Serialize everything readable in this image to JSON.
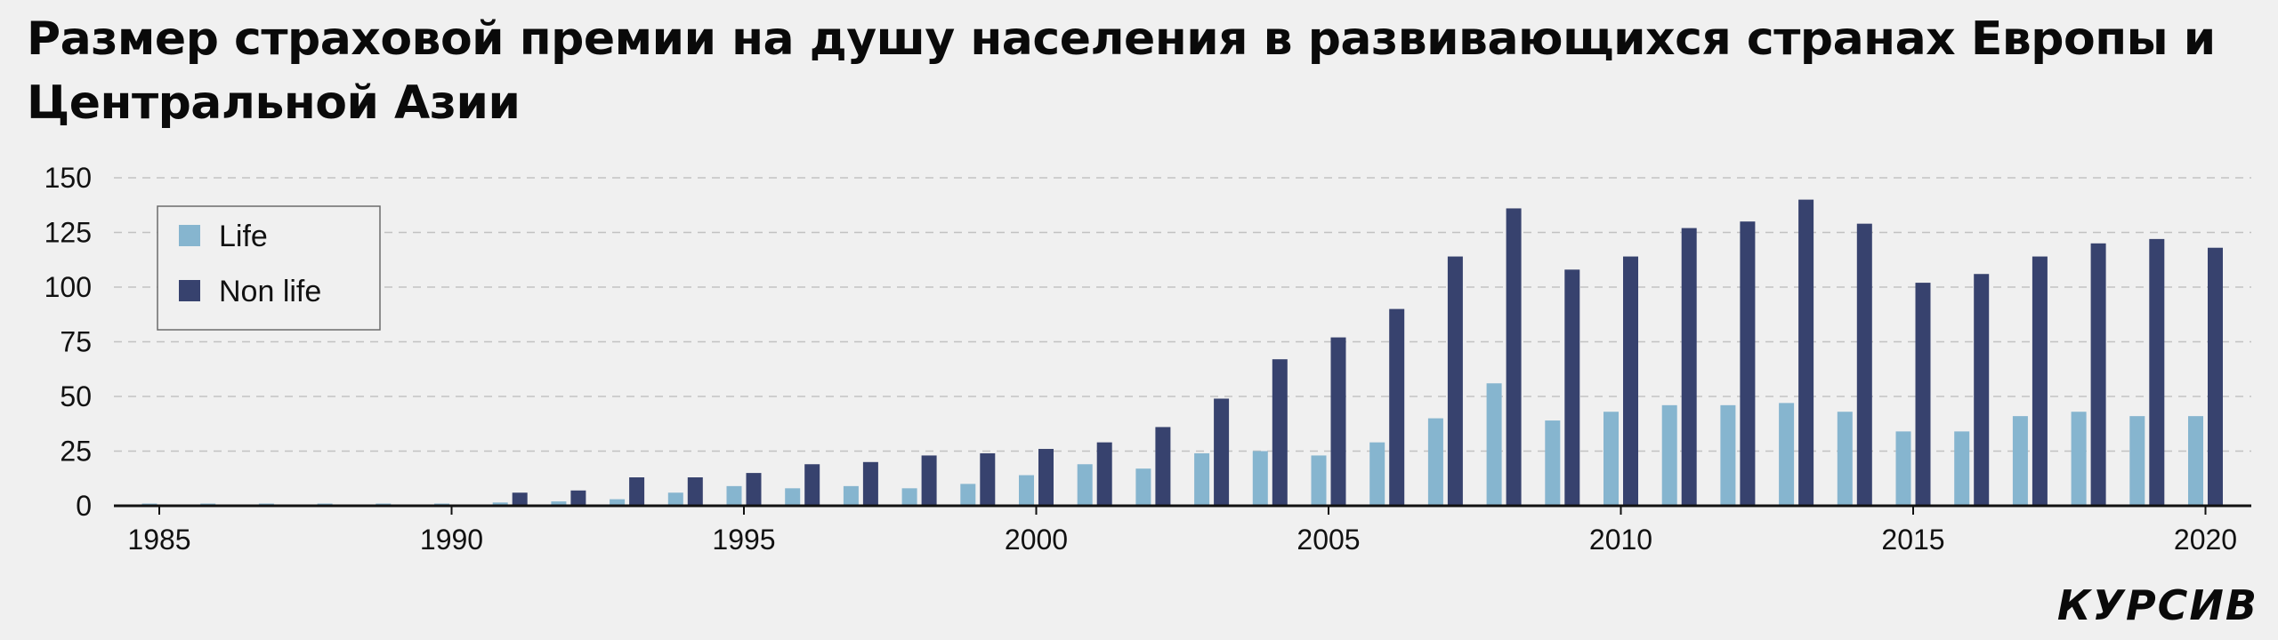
{
  "chart_data": {
    "type": "bar",
    "title": "Размер страховой премии на душу населения в развивающихся странах Европы и Центральной Азии",
    "xlabel": "",
    "ylabel": "",
    "ylim": [
      0,
      150
    ],
    "yticks": [
      "0",
      "25",
      "50",
      "75",
      "100",
      "125",
      "150"
    ],
    "xticks": [
      "1985",
      "1990",
      "1995",
      "2000",
      "2005",
      "2010",
      "2015",
      "2020"
    ],
    "grid": "horizontal dashed",
    "legend_position": "top-left",
    "categories": [
      "1985",
      "1986",
      "1987",
      "1988",
      "1989",
      "1990",
      "1991",
      "1992",
      "1993",
      "1994",
      "1995",
      "1996",
      "1997",
      "1998",
      "1999",
      "2000",
      "2001",
      "2002",
      "2003",
      "2004",
      "2005",
      "2006",
      "2007",
      "2008",
      "2009",
      "2010",
      "2011",
      "2012",
      "2013",
      "2014",
      "2015",
      "2016",
      "2017",
      "2018",
      "2019",
      "2020"
    ],
    "series": [
      {
        "name": "Life",
        "color": "#86b5cf",
        "values": [
          1,
          1,
          1,
          1,
          1,
          1,
          1.5,
          2,
          3,
          6,
          9,
          8,
          9,
          8,
          10,
          14,
          19,
          17,
          24,
          25,
          23,
          29,
          40,
          56,
          39,
          43,
          46,
          46,
          47,
          43,
          34,
          34,
          41,
          43,
          41,
          41
        ]
      },
      {
        "name": "Non life",
        "color": "#37426e",
        "values": [
          0,
          0,
          0,
          0,
          0,
          0,
          6,
          7,
          13,
          13,
          15,
          19,
          20,
          23,
          24,
          26,
          29,
          36,
          49,
          67,
          77,
          90,
          114,
          136,
          108,
          114,
          127,
          130,
          140,
          129,
          102,
          106,
          114,
          120,
          122,
          118
        ]
      }
    ]
  },
  "brand": "КУРСИВ"
}
